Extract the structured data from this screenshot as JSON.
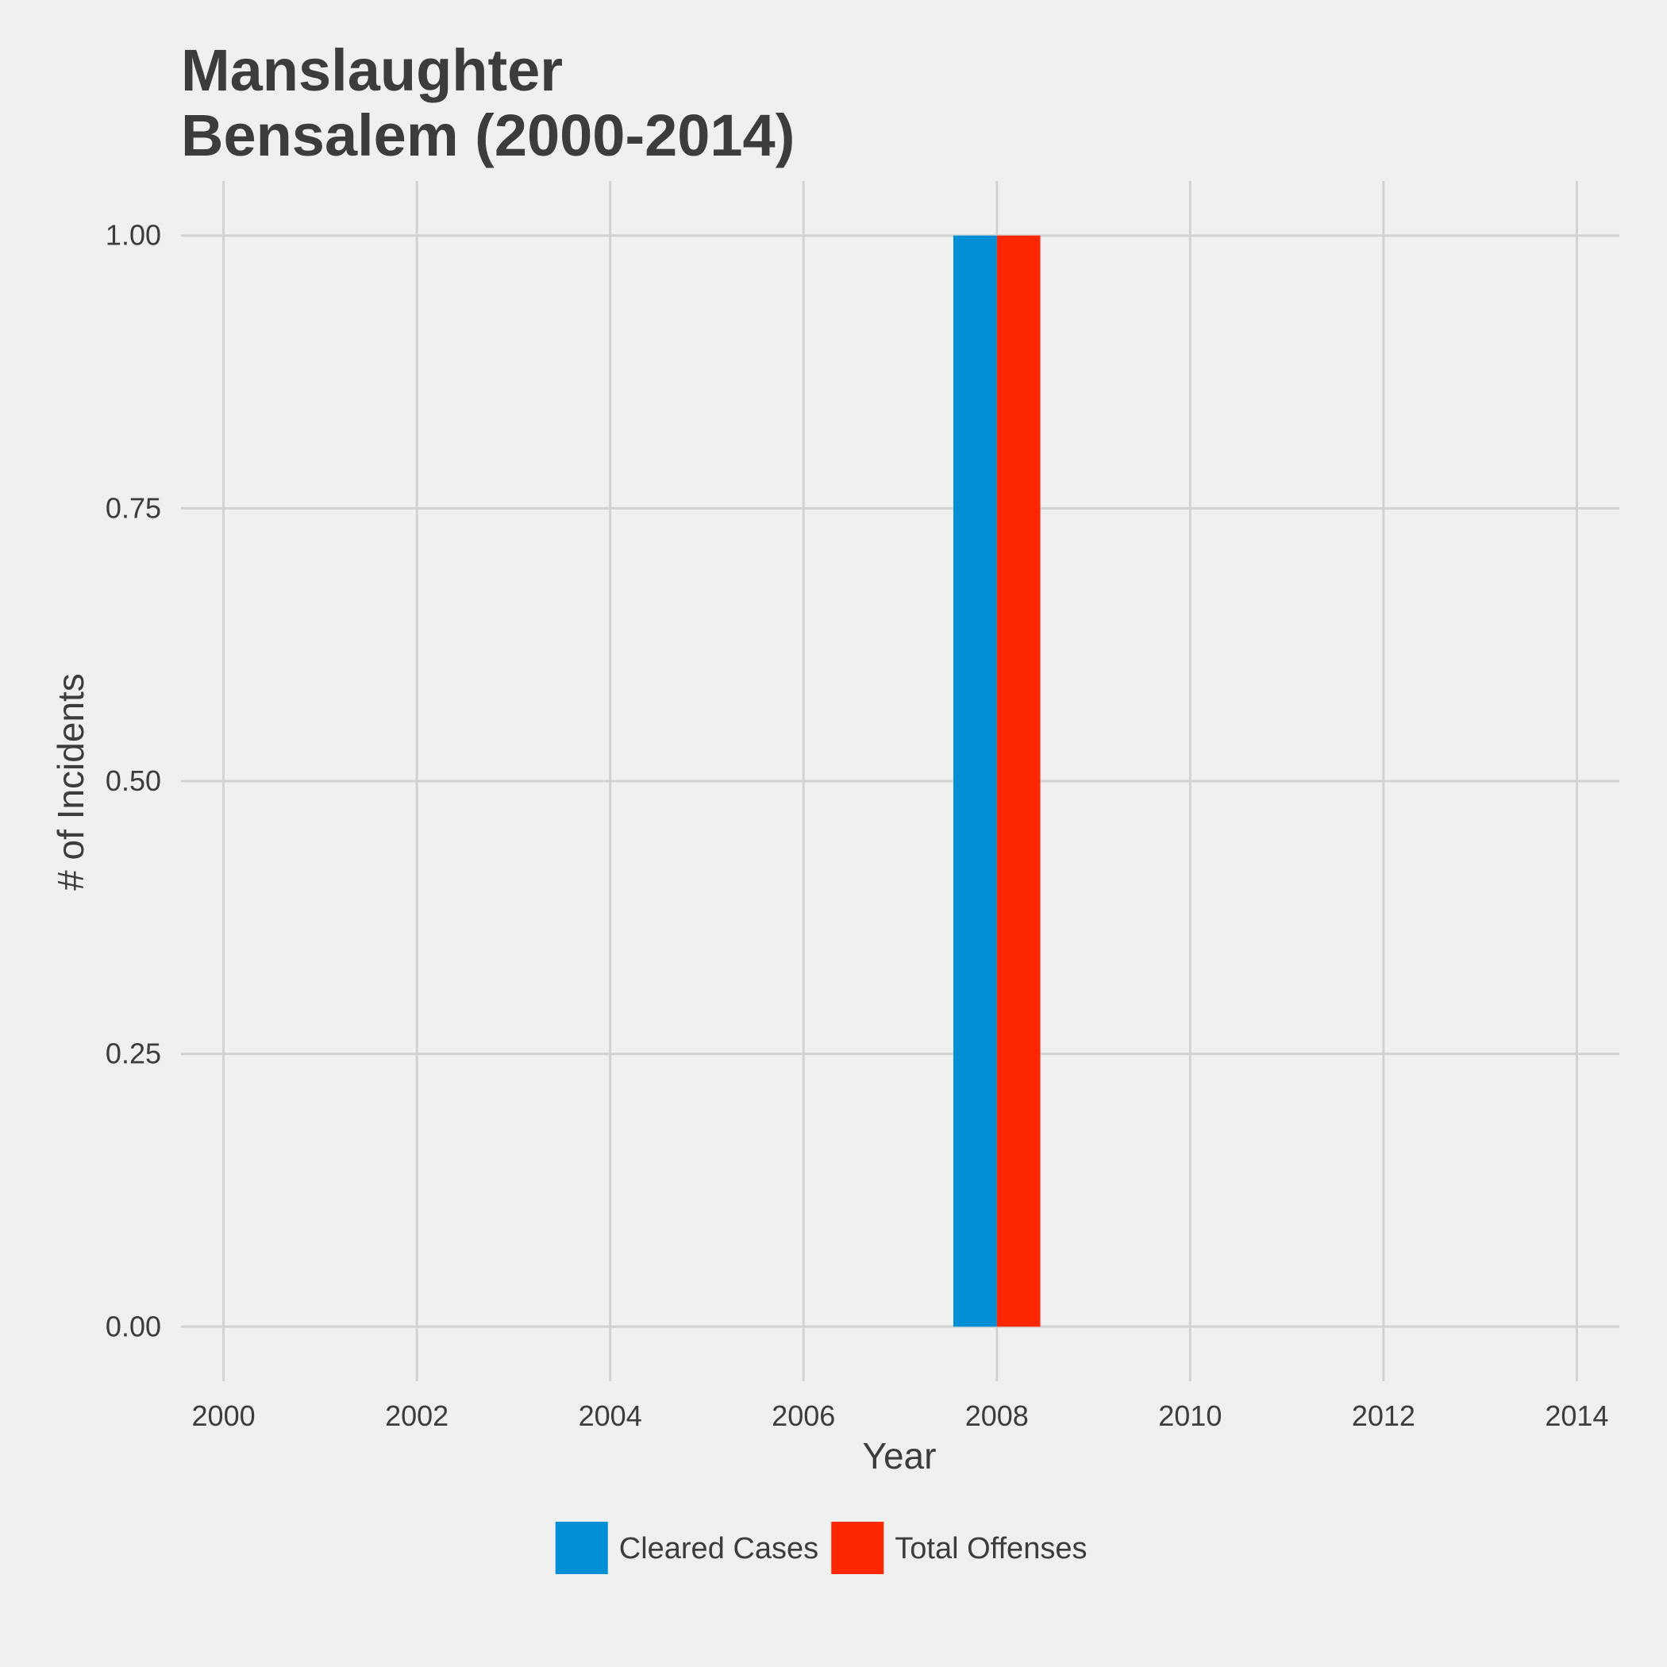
{
  "chart_data": {
    "type": "bar",
    "title_lines": [
      "Manslaughter",
      "Bensalem (2000-2014)"
    ],
    "xlabel": "Year",
    "ylabel": "# of Incidents",
    "x_ticks": [
      "2000",
      "2002",
      "2004",
      "2006",
      "2008",
      "2010",
      "2012",
      "2014"
    ],
    "y_ticks": [
      "0.00",
      "0.25",
      "0.50",
      "0.75",
      "1.00"
    ],
    "xlim": [
      1999.56,
      2014.44
    ],
    "ylim": [
      -0.05,
      1.05
    ],
    "bar_width_years": 0.9,
    "grid": true,
    "legend_position": "bottom",
    "series": [
      {
        "name": "Cleared Cases",
        "color": "#008fd5",
        "points": [
          {
            "x": 2008,
            "y": 1
          }
        ]
      },
      {
        "name": "Total Offenses",
        "color": "#ff2700",
        "points": [
          {
            "x": 2008,
            "y": 1
          }
        ]
      }
    ]
  }
}
